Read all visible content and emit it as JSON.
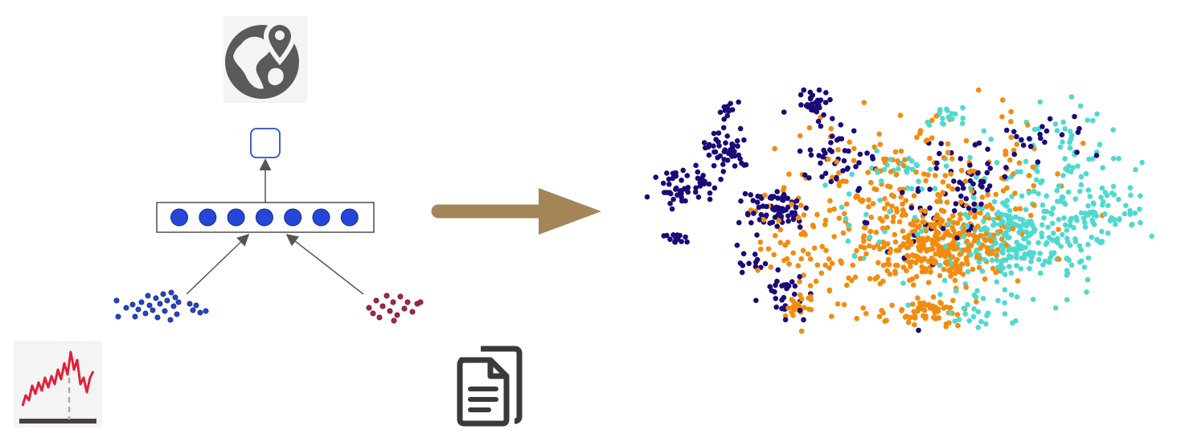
{
  "diagram": {
    "icons": [
      "globe-location-icon",
      "time-series-chart-icon",
      "documents-icon"
    ],
    "embedding_units": 7,
    "colors": {
      "unit_fill": "#2546d9",
      "unit_stroke": "#1a2a7a",
      "output_box_stroke": "#2b4fd6",
      "edge": "#555555",
      "left_dots": "#2743c4",
      "right_dots": "#a8254a",
      "big_arrow": "#a48557",
      "icon_gray": "#5a5a5a",
      "chart_line": "#e0203c"
    }
  },
  "scatter": {
    "clusters": [
      {
        "name": "",
        "color": "#1b0a78"
      },
      {
        "name": "",
        "color": "#f28c0f"
      },
      {
        "name": "",
        "color": "#4fd9cf"
      }
    ]
  }
}
